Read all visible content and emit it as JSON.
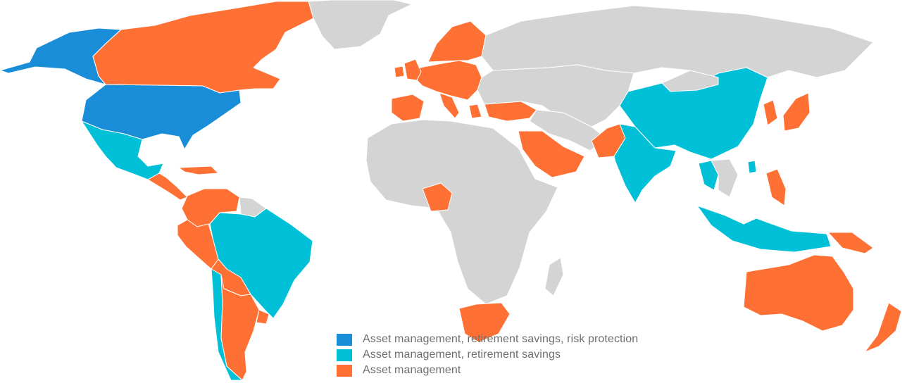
{
  "colors": {
    "tier1": "#1a8dd8",
    "tier2": "#00c0d8",
    "tier3": "#ff7034",
    "other": "#d4d4d4",
    "border": "#ffffff"
  },
  "legend": [
    {
      "label": "Asset management, retirement savings, risk protection",
      "color": "#1a8dd8"
    },
    {
      "label": "Asset management, retirement savings",
      "color": "#00c0d8"
    },
    {
      "label": "Asset management",
      "color": "#ff7034"
    }
  ],
  "regions": [
    {
      "name": "Greenland",
      "category": "other"
    },
    {
      "name": "Alaska",
      "category": "tier1"
    },
    {
      "name": "Canada",
      "category": "tier3"
    },
    {
      "name": "United States",
      "category": "tier1"
    },
    {
      "name": "Mexico",
      "category": "tier2"
    },
    {
      "name": "Central America",
      "category": "tier3"
    },
    {
      "name": "Caribbean",
      "category": "tier3"
    },
    {
      "name": "Colombia / Venezuela",
      "category": "tier3"
    },
    {
      "name": "Guianas",
      "category": "other"
    },
    {
      "name": "Peru / Ecuador",
      "category": "tier3"
    },
    {
      "name": "Brazil",
      "category": "tier2"
    },
    {
      "name": "Bolivia / Paraguay",
      "category": "tier3"
    },
    {
      "name": "Chile",
      "category": "tier2"
    },
    {
      "name": "Argentina",
      "category": "tier3"
    },
    {
      "name": "Uruguay",
      "category": "tier3"
    },
    {
      "name": "Western Europe",
      "category": "tier3"
    },
    {
      "name": "Scandinavia",
      "category": "tier3"
    },
    {
      "name": "United Kingdom",
      "category": "tier3"
    },
    {
      "name": "Ireland",
      "category": "tier3"
    },
    {
      "name": "Iberia",
      "category": "tier3"
    },
    {
      "name": "Italy",
      "category": "tier3"
    },
    {
      "name": "Greece",
      "category": "tier3"
    },
    {
      "name": "Turkey",
      "category": "tier3"
    },
    {
      "name": "Russia",
      "category": "other"
    },
    {
      "name": "Eastern Europe / Central Asia",
      "category": "other"
    },
    {
      "name": "Africa",
      "category": "other"
    },
    {
      "name": "Nigeria",
      "category": "tier3"
    },
    {
      "name": "South Africa",
      "category": "tier3"
    },
    {
      "name": "Madagascar",
      "category": "other"
    },
    {
      "name": "Saudi Arabia / UAE",
      "category": "tier3"
    },
    {
      "name": "Iran / Middle East",
      "category": "other"
    },
    {
      "name": "Pakistan",
      "category": "tier3"
    },
    {
      "name": "India",
      "category": "tier2"
    },
    {
      "name": "China",
      "category": "tier2"
    },
    {
      "name": "Mongolia",
      "category": "other"
    },
    {
      "name": "Korea",
      "category": "tier3"
    },
    {
      "name": "Japan",
      "category": "tier3"
    },
    {
      "name": "Thailand",
      "category": "tier2"
    },
    {
      "name": "Indochina",
      "category": "other"
    },
    {
      "name": "Taiwan / Hong Kong",
      "category": "tier2"
    },
    {
      "name": "Philippines",
      "category": "tier3"
    },
    {
      "name": "Malaysia / Indonesia",
      "category": "tier2"
    },
    {
      "name": "Papua New Guinea",
      "category": "tier3"
    },
    {
      "name": "Australia",
      "category": "tier3"
    },
    {
      "name": "New Zealand",
      "category": "tier3"
    }
  ]
}
